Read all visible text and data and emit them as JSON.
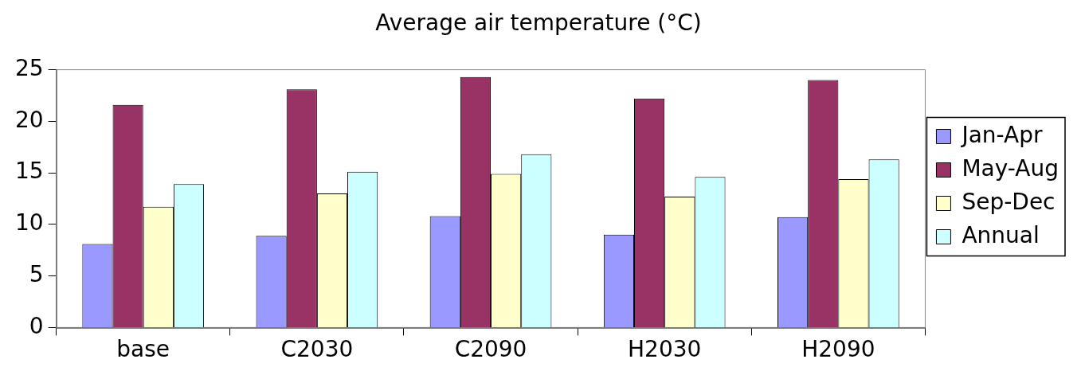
{
  "chart_data": {
    "type": "bar",
    "title": "Average air temperature (°C)",
    "categories": [
      "base",
      "C2030",
      "C2090",
      "H2030",
      "H2090"
    ],
    "series": [
      {
        "name": "Jan-Apr",
        "color": "#9999ff",
        "values": [
          8.1,
          8.9,
          10.8,
          9.0,
          10.7
        ]
      },
      {
        "name": "May-Aug",
        "color": "#993366",
        "values": [
          21.6,
          23.1,
          24.3,
          22.2,
          24.0
        ]
      },
      {
        "name": "Sep-Dec",
        "color": "#ffffcc",
        "values": [
          11.7,
          13.0,
          14.9,
          12.7,
          14.4
        ]
      },
      {
        "name": "Annual",
        "color": "#ccffff",
        "values": [
          13.9,
          15.1,
          16.8,
          14.6,
          16.3
        ]
      }
    ],
    "ylim": [
      0,
      25
    ],
    "yticks": [
      0,
      5,
      10,
      15,
      20,
      25
    ],
    "grid": false,
    "legend": "right"
  }
}
